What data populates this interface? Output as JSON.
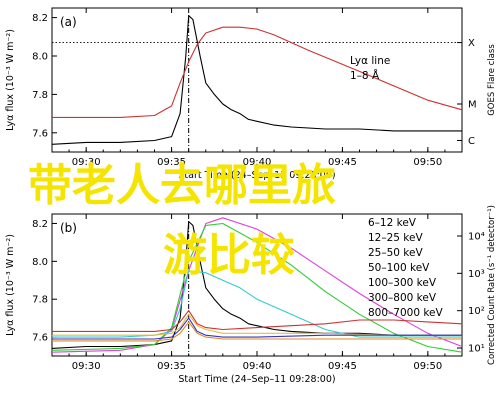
{
  "overlay": {
    "line1": "带老人去哪里旅",
    "line2": "游比较",
    "color": "#f5e400"
  },
  "chart_data": [
    {
      "panel": "(a)",
      "type": "line",
      "xlabel": "Start Time (24–Sep–11 09:28:00)",
      "ylabel": "Lyα flux (10⁻³ W m⁻²)",
      "y2label": "GOES Flare class",
      "xlim": [
        "09:28",
        "09:52"
      ],
      "ylim": [
        7.5,
        8.25
      ],
      "xticks": [
        "09:30",
        "09:35",
        "09:40",
        "09:45",
        "09:50"
      ],
      "yticks": [
        7.6,
        7.8,
        8.0,
        8.2
      ],
      "y2ticks": [
        "X",
        "M",
        "C"
      ],
      "event_time": "09:36",
      "threshold_y": 8.07,
      "series": [
        {
          "name": "Lyα line",
          "color": "#000000",
          "x": [
            "09:28",
            "09:30",
            "09:32",
            "09:34",
            "09:35",
            "09:35:30",
            "09:35:50",
            "09:36",
            "09:36:15",
            "09:36:40",
            "09:37",
            "09:37:30",
            "09:38",
            "09:38:30",
            "09:39",
            "09:39:30",
            "09:40",
            "09:41",
            "09:42",
            "09:44",
            "09:46",
            "09:48",
            "09:50",
            "09:52"
          ],
          "values": [
            7.54,
            7.55,
            7.55,
            7.56,
            7.58,
            7.7,
            8.0,
            8.21,
            8.19,
            8.0,
            7.86,
            7.8,
            7.75,
            7.72,
            7.7,
            7.67,
            7.66,
            7.64,
            7.63,
            7.62,
            7.62,
            7.61,
            7.61,
            7.61
          ]
        },
        {
          "name": "1–8 Å",
          "color": "#cc3333",
          "x": [
            "09:28",
            "09:32",
            "09:34",
            "09:35",
            "09:35:30",
            "09:36",
            "09:36:30",
            "09:37",
            "09:38",
            "09:39",
            "09:40",
            "09:41",
            "09:43",
            "09:46",
            "09:50",
            "09:52"
          ],
          "values": [
            7.68,
            7.68,
            7.69,
            7.74,
            7.86,
            7.97,
            8.06,
            8.12,
            8.15,
            8.15,
            8.14,
            8.11,
            8.03,
            7.92,
            7.77,
            7.72
          ]
        }
      ],
      "legend": [
        "Lyα line",
        "1–8 Å"
      ],
      "legend_position": "top-right"
    },
    {
      "panel": "(b)",
      "type": "line",
      "xlabel": "Start Time (24–Sep–11 09:28:00)",
      "ylabel": "Lyα flux (10⁻³ W m⁻²)",
      "y2label": "Corrected Count Rate (s⁻¹ detector⁻¹)",
      "xlim": [
        "09:28",
        "09:52"
      ],
      "ylim": [
        7.5,
        8.25
      ],
      "xticks": [
        "09:30",
        "09:35",
        "09:40",
        "09:45",
        "09:50"
      ],
      "yticks": [
        7.6,
        7.8,
        8.0,
        8.2
      ],
      "y2ticks": [
        "10⁴",
        "10³",
        "10²",
        "10¹"
      ],
      "event_time": "09:36",
      "series": [
        {
          "name": "Lyα line",
          "color": "#000000",
          "x": [
            "09:28",
            "09:30",
            "09:32",
            "09:34",
            "09:35",
            "09:35:30",
            "09:35:50",
            "09:36",
            "09:36:15",
            "09:36:40",
            "09:37",
            "09:37:30",
            "09:38",
            "09:38:30",
            "09:39",
            "09:39:30",
            "09:40",
            "09:41",
            "09:42",
            "09:44",
            "09:46",
            "09:48",
            "09:50",
            "09:52"
          ],
          "values": [
            7.54,
            7.55,
            7.55,
            7.56,
            7.58,
            7.7,
            8.0,
            8.21,
            8.19,
            8.0,
            7.86,
            7.8,
            7.75,
            7.72,
            7.7,
            7.67,
            7.66,
            7.64,
            7.63,
            7.62,
            7.62,
            7.61,
            7.61,
            7.61
          ]
        },
        {
          "name": "6–12 keV",
          "color": "#e040e0",
          "x": [
            "09:28",
            "09:32",
            "09:34",
            "09:35",
            "09:36",
            "09:37",
            "09:38",
            "09:40",
            "09:42",
            "09:44",
            "09:46",
            "09:48",
            "09:50",
            "09:52"
          ],
          "values": [
            7.52,
            7.53,
            7.56,
            7.64,
            7.95,
            8.2,
            8.23,
            8.17,
            8.07,
            7.95,
            7.83,
            7.72,
            7.62,
            7.55
          ]
        },
        {
          "name": "12–25 keV",
          "color": "#33cc33",
          "x": [
            "09:28",
            "09:32",
            "09:34",
            "09:35",
            "09:36",
            "09:37",
            "09:38",
            "09:40",
            "09:42",
            "09:44",
            "09:46",
            "09:48",
            "09:50",
            "09:52"
          ],
          "values": [
            7.53,
            7.54,
            7.56,
            7.65,
            8.0,
            8.19,
            8.2,
            8.1,
            7.98,
            7.84,
            7.72,
            7.62,
            7.55,
            7.52
          ]
        },
        {
          "name": "25–50 keV",
          "color": "#33cccc",
          "x": [
            "09:28",
            "09:32",
            "09:34",
            "09:35",
            "09:35:30",
            "09:36",
            "09:37",
            "09:38",
            "09:39",
            "09:40",
            "09:42",
            "09:44",
            "09:46",
            "09:48",
            "09:52"
          ],
          "values": [
            7.6,
            7.6,
            7.61,
            7.63,
            7.75,
            7.95,
            7.94,
            7.9,
            7.86,
            7.8,
            7.72,
            7.64,
            7.6,
            7.6,
            7.6
          ]
        },
        {
          "name": "50–100 keV",
          "color": "#e0c040",
          "x": [
            "09:28",
            "09:32",
            "09:34",
            "09:35",
            "09:35:30",
            "09:36",
            "09:36:30",
            "09:37",
            "09:38",
            "09:40",
            "09:44",
            "09:48",
            "09:52"
          ],
          "values": [
            7.61,
            7.61,
            7.61,
            7.62,
            7.65,
            7.72,
            7.66,
            7.64,
            7.62,
            7.62,
            7.62,
            7.61,
            7.61
          ]
        },
        {
          "name": "100–300 keV",
          "color": "#cc3333",
          "x": [
            "09:28",
            "09:32",
            "09:34",
            "09:35",
            "09:35:30",
            "09:36",
            "09:36:30",
            "09:37",
            "09:38",
            "09:40",
            "09:44",
            "09:46",
            "09:48",
            "09:50",
            "09:52"
          ],
          "values": [
            7.63,
            7.63,
            7.63,
            7.64,
            7.68,
            7.74,
            7.67,
            7.65,
            7.64,
            7.65,
            7.67,
            7.69,
            7.69,
            7.68,
            7.67
          ]
        },
        {
          "name": "300–800 keV",
          "color": "#3333cc",
          "x": [
            "09:28",
            "09:32",
            "09:34",
            "09:35",
            "09:35:30",
            "09:36",
            "09:36:30",
            "09:37",
            "09:38",
            "09:40",
            "09:44",
            "09:48",
            "09:52"
          ],
          "values": [
            7.59,
            7.59,
            7.59,
            7.6,
            7.64,
            7.7,
            7.63,
            7.61,
            7.6,
            7.6,
            7.61,
            7.61,
            7.61
          ]
        },
        {
          "name": "800–7000 keV",
          "color": "#e08a20",
          "x": [
            "09:28",
            "09:32",
            "09:34",
            "09:35",
            "09:35:30",
            "09:36",
            "09:36:30",
            "09:37",
            "09:38",
            "09:40",
            "09:44",
            "09:48",
            "09:52"
          ],
          "values": [
            7.58,
            7.58,
            7.58,
            7.59,
            7.62,
            7.68,
            7.62,
            7.6,
            7.59,
            7.59,
            7.59,
            7.59,
            7.59
          ]
        }
      ],
      "legend": [
        "6–12 keV",
        "12–25 keV",
        "25–50 keV",
        "50–100 keV",
        "100–300 keV",
        "300–800 keV",
        "800–7000 keV"
      ],
      "legend_position": "top-right"
    }
  ]
}
